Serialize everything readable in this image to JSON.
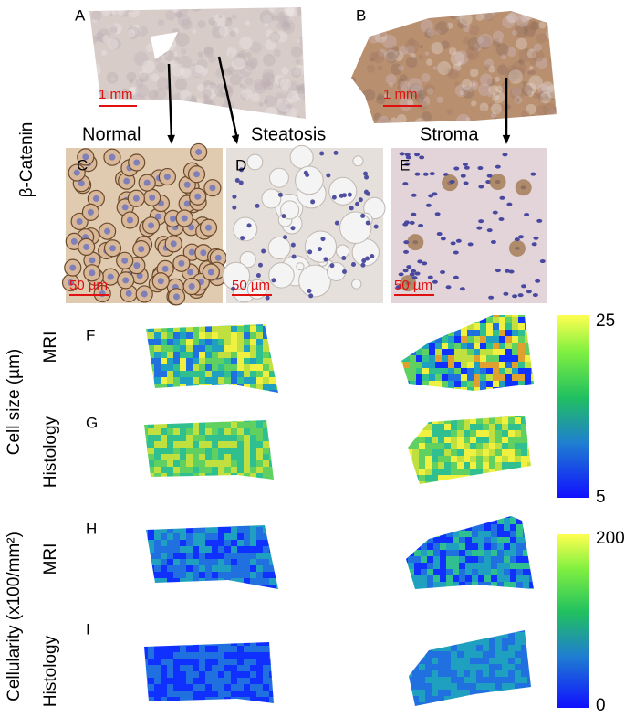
{
  "panels": {
    "top": {
      "a": {
        "letter": "A",
        "scale": "1 mm"
      },
      "b": {
        "letter": "B",
        "scale": "1 mm"
      }
    },
    "micrographs": {
      "stain": "β-Catenin",
      "c": {
        "letter": "C",
        "title": "Normal",
        "scale": "50 µm"
      },
      "d": {
        "letter": "D",
        "title": "Steatosis",
        "scale": "50 µm"
      },
      "e": {
        "letter": "E",
        "title": "Stroma",
        "scale": "50 µm"
      }
    },
    "maps": {
      "cell_size": {
        "label": "Cell size (µm)",
        "rows": [
          {
            "letter": "F",
            "method": "MRI"
          },
          {
            "letter": "G",
            "method": "Histology"
          }
        ],
        "colorbar": {
          "max": 25,
          "min": 5
        }
      },
      "cellularity": {
        "label": "Cellularity (x100/mm²)",
        "rows": [
          {
            "letter": "H",
            "method": "MRI"
          },
          {
            "letter": "I",
            "method": "Histology"
          }
        ],
        "colorbar": {
          "max": 200,
          "min": 0
        }
      }
    }
  }
}
